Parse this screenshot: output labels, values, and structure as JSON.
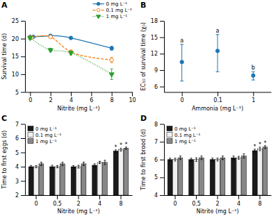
{
  "chart_data": [
    {
      "type": "line",
      "title": "A",
      "xlabel": "Nitrite (mg L⁻¹)",
      "ylabel": "Survival time (d)",
      "xlim": [
        -0.5,
        10
      ],
      "ylim": [
        5,
        25
      ],
      "xticks": [
        0,
        2,
        4,
        6,
        8,
        10
      ],
      "yticks": [
        5,
        10,
        15,
        20,
        25
      ],
      "grid": false,
      "legend": "upper right",
      "series": [
        {
          "name": "0 mg L⁻¹",
          "x": [
            0,
            0.3,
            2,
            4,
            8
          ],
          "values": [
            20.5,
            20.5,
            20.8,
            20.2,
            17.3
          ],
          "yerr": [
            0.35,
            0.35,
            0.3,
            0.3,
            0.55
          ],
          "marker": "circle",
          "line_style": "solid"
        },
        {
          "name": "0.1 mg L⁻¹",
          "x": [
            0,
            0.15,
            2,
            4,
            8
          ],
          "values": [
            20.3,
            20.3,
            20.5,
            16.3,
            14.0
          ],
          "yerr": [
            0.45,
            0.45,
            0.4,
            0.5,
            0.75
          ],
          "marker": "open-circle",
          "line_style": "dashed"
        },
        {
          "name": "1 mg L⁻¹",
          "x": [
            0,
            2,
            4,
            8
          ],
          "values": [
            20.2,
            16.8,
            16.0,
            10.0
          ],
          "yerr": [
            0.45,
            0.5,
            0.55,
            1.5
          ],
          "marker": "triangle-down",
          "line_style": "dotted"
        }
      ]
    },
    {
      "type": "scatter",
      "title": "B",
      "xlabel": "Ammonia (mg L⁻¹)",
      "ylabel": "EC₅₀ of survival time (χ₀)",
      "categories": [
        "0",
        "0.1",
        "1"
      ],
      "values": [
        10.5,
        12.5,
        8.0
      ],
      "yerr_low": [
        3.5,
        3.8,
        0.8
      ],
      "yerr_high": [
        3.2,
        3.0,
        0.7
      ],
      "annotations": [
        "a",
        "a",
        "b"
      ],
      "ylim": [
        5,
        18
      ],
      "yticks": [
        6,
        9,
        12,
        15,
        18
      ],
      "grid": false
    },
    {
      "type": "bar",
      "title": "C",
      "xlabel": "Nitrite (mg L⁻¹)",
      "ylabel": "Time to first eggs (d)",
      "categories": [
        "0",
        "0.5",
        "2",
        "4",
        "8"
      ],
      "ylim": [
        2,
        7
      ],
      "yticks": [
        2,
        3,
        4,
        5,
        6,
        7
      ],
      "grid": false,
      "legend": "upper left",
      "series": [
        {
          "name": "0 mg L⁻¹",
          "color": "#1a1a1a",
          "values": [
            4.0,
            4.0,
            4.0,
            4.1,
            5.1
          ],
          "yerr": [
            0.08,
            0.1,
            0.08,
            0.1,
            0.08
          ],
          "annotations": [
            null,
            null,
            null,
            null,
            "*"
          ]
        },
        {
          "name": "0.1 mg L⁻¹",
          "color": "#f0f0f0",
          "values": [
            4.0,
            4.0,
            4.0,
            4.3,
            5.2
          ],
          "yerr": [
            0.08,
            0.08,
            0.1,
            0.08,
            0.1
          ],
          "annotations": [
            null,
            null,
            null,
            null,
            "*"
          ]
        },
        {
          "name": "1 mg L⁻¹",
          "color": "#888888",
          "values": [
            4.2,
            4.2,
            4.2,
            4.3,
            5.3
          ],
          "yerr": [
            0.12,
            0.12,
            0.12,
            0.15,
            0.08
          ],
          "annotations": [
            null,
            null,
            null,
            null,
            "*"
          ]
        }
      ]
    },
    {
      "type": "bar",
      "title": "D",
      "xlabel": "Nitrite (mg L⁻¹)",
      "ylabel": "Time to first brood (d)",
      "categories": [
        "0",
        "0.5",
        "2",
        "4",
        "8"
      ],
      "ylim": [
        4,
        8
      ],
      "yticks": [
        4,
        5,
        6,
        7,
        8
      ],
      "grid": false,
      "legend": "upper left",
      "series": [
        {
          "name": "0 mg L⁻¹",
          "color": "#1a1a1a",
          "values": [
            6.0,
            6.0,
            6.0,
            6.1,
            6.5
          ],
          "yerr": [
            0.08,
            0.08,
            0.08,
            0.1,
            0.08
          ],
          "annotations": [
            null,
            null,
            null,
            null,
            "*"
          ]
        },
        {
          "name": "0.1 mg L⁻¹",
          "color": "#f0f0f0",
          "values": [
            6.0,
            6.0,
            6.0,
            6.1,
            6.6
          ],
          "yerr": [
            0.08,
            0.1,
            0.08,
            0.08,
            0.1
          ],
          "annotations": [
            null,
            null,
            null,
            null,
            "*"
          ]
        },
        {
          "name": "1 mg L⁻¹",
          "color": "#888888",
          "values": [
            6.1,
            6.1,
            6.1,
            6.2,
            6.7
          ],
          "yerr": [
            0.1,
            0.1,
            0.1,
            0.12,
            0.08
          ],
          "annotations": [
            null,
            null,
            null,
            null,
            "*"
          ]
        }
      ]
    }
  ]
}
